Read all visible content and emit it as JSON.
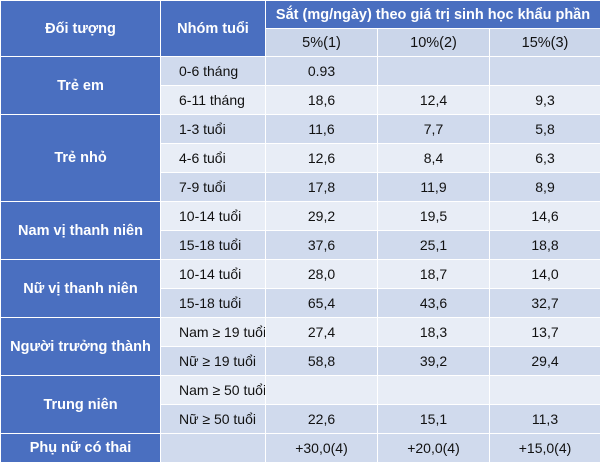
{
  "header": {
    "col_subject": "Đối tượng",
    "col_age": "Nhóm tuổi",
    "col_iron": "Sắt (mg/ngày) theo giá trị sinh học khẩu phần",
    "sub1": "5%(1)",
    "sub2": "10%(2)",
    "sub3": "15%(3)"
  },
  "groups": [
    {
      "name": "Trẻ em",
      "rows": [
        {
          "age": "0-6 tháng",
          "v1": "0.93",
          "v2": "",
          "v3": ""
        },
        {
          "age": "6-11 tháng",
          "v1": "18,6",
          "v2": "12,4",
          "v3": "9,3"
        }
      ]
    },
    {
      "name": "Trẻ nhỏ",
      "rows": [
        {
          "age": "1-3 tuổi",
          "v1": "11,6",
          "v2": "7,7",
          "v3": "5,8"
        },
        {
          "age": "4-6 tuổi",
          "v1": "12,6",
          "v2": "8,4",
          "v3": "6,3"
        },
        {
          "age": "7-9 tuổi",
          "v1": "17,8",
          "v2": "11,9",
          "v3": "8,9"
        }
      ]
    },
    {
      "name": "Nam vị thanh niên",
      "rows": [
        {
          "age": "10-14 tuổi",
          "v1": "29,2",
          "v2": "19,5",
          "v3": "14,6"
        },
        {
          "age": "15-18 tuổi",
          "v1": "37,6",
          "v2": "25,1",
          "v3": "18,8"
        }
      ]
    },
    {
      "name": "Nữ vị thanh niên",
      "rows": [
        {
          "age": "10-14 tuổi",
          "v1": "28,0",
          "v2": "18,7",
          "v3": "14,0"
        },
        {
          "age": "15-18 tuổi",
          "v1": "65,4",
          "v2": "43,6",
          "v3": "32,7"
        }
      ]
    },
    {
      "name": "Người trưởng thành",
      "rows": [
        {
          "age": "Nam ≥ 19 tuổi",
          "v1": "27,4",
          "v2": "18,3",
          "v3": "13,7"
        },
        {
          "age": "Nữ ≥ 19 tuổi",
          "v1": "58,8",
          "v2": "39,2",
          "v3": "29,4"
        }
      ]
    },
    {
      "name": "Trung niên",
      "rows": [
        {
          "age": "Nam ≥ 50 tuổi",
          "v1": "",
          "v2": "",
          "v3": ""
        },
        {
          "age": "Nữ ≥ 50 tuổi",
          "v1": "22,6",
          "v2": "15,1",
          "v3": "11,3"
        }
      ]
    }
  ],
  "pregnant": {
    "name": "Phụ nữ có thai",
    "age": "",
    "v1": "+30,0(4)",
    "v2": "+20,0(4)",
    "v3": "+15,0(4)"
  }
}
